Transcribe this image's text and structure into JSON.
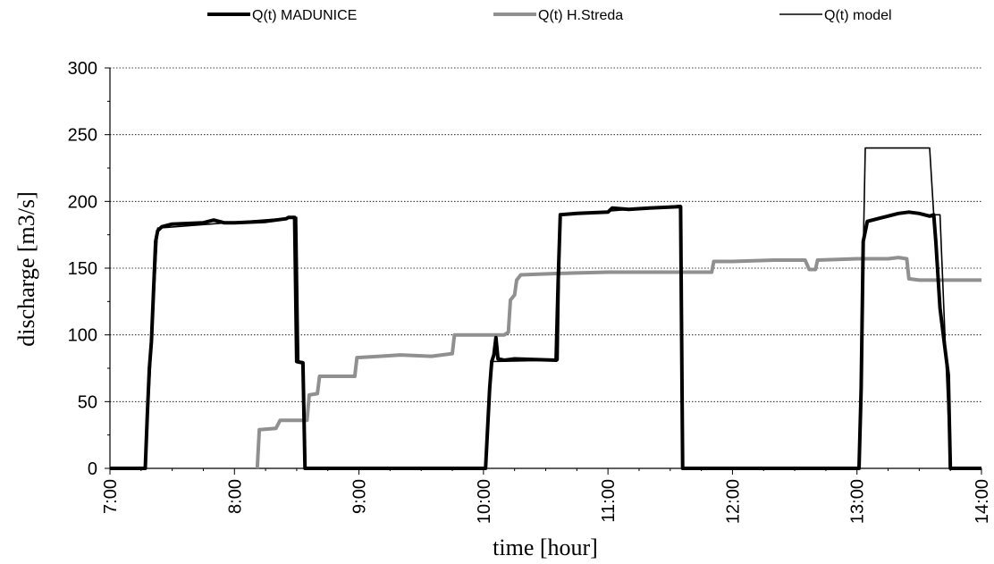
{
  "chart_data": {
    "type": "line",
    "title": "",
    "xlabel": "time [hour]",
    "ylabel": "discharge [m3/s]",
    "xlim": [
      "7:00",
      "14:00"
    ],
    "ylim": [
      0,
      300
    ],
    "x_ticks": [
      "7:00",
      "8:00",
      "9:00",
      "10:00",
      "11:00",
      "12:00",
      "13:00",
      "14:00"
    ],
    "y_ticks": [
      "0",
      "50",
      "100",
      "150",
      "200",
      "250",
      "300"
    ],
    "grid": "horizontal dotted",
    "legend_position": "top",
    "series": [
      {
        "name": "Q(t) MADUNICE",
        "color": "#000000",
        "style": "thick",
        "points": [
          [
            "7:00",
            0
          ],
          [
            "7:17",
            0
          ],
          [
            "7:18",
            40
          ],
          [
            "7:19",
            75
          ],
          [
            "7:20",
            95
          ],
          [
            "7:22",
            170
          ],
          [
            "7:23",
            178
          ],
          [
            "7:25",
            181
          ],
          [
            "7:30",
            183
          ],
          [
            "7:45",
            184
          ],
          [
            "7:50",
            186
          ],
          [
            "7:55",
            184
          ],
          [
            "8:00",
            184
          ],
          [
            "8:15",
            185
          ],
          [
            "8:25",
            187
          ],
          [
            "8:26",
            188
          ],
          [
            "8:29",
            188
          ],
          [
            "8:30",
            80
          ],
          [
            "8:33",
            79
          ],
          [
            "8:34",
            0
          ],
          [
            "10:00",
            0
          ],
          [
            "10:01",
            0
          ],
          [
            "10:03",
            60
          ],
          [
            "10:04",
            80
          ],
          [
            "10:05",
            85
          ],
          [
            "10:06",
            98
          ],
          [
            "10:07",
            82
          ],
          [
            "10:10",
            81
          ],
          [
            "10:15",
            82
          ],
          [
            "10:35",
            81
          ],
          [
            "10:36",
            140
          ],
          [
            "10:37",
            190
          ],
          [
            "10:45",
            191
          ],
          [
            "11:00",
            192
          ],
          [
            "11:02",
            195
          ],
          [
            "11:10",
            194
          ],
          [
            "11:20",
            195
          ],
          [
            "11:34",
            196
          ],
          [
            "11:35",
            196
          ],
          [
            "11:36",
            0
          ],
          [
            "13:00",
            0
          ],
          [
            "13:01",
            0
          ],
          [
            "13:02",
            60
          ],
          [
            "13:03",
            170
          ],
          [
            "13:05",
            185
          ],
          [
            "13:10",
            187
          ],
          [
            "13:20",
            191
          ],
          [
            "13:25",
            192
          ],
          [
            "13:30",
            191
          ],
          [
            "13:35",
            189
          ],
          [
            "13:37",
            190
          ],
          [
            "13:38",
            170
          ],
          [
            "13:40",
            120
          ],
          [
            "13:42",
            95
          ],
          [
            "13:44",
            70
          ],
          [
            "13:45",
            0
          ],
          [
            "14:00",
            0
          ]
        ]
      },
      {
        "name": "Q(t) H.Streda",
        "color": "#909090",
        "style": "thick",
        "points": [
          [
            "8:11",
            0
          ],
          [
            "8:12",
            29
          ],
          [
            "8:20",
            30
          ],
          [
            "8:22",
            36
          ],
          [
            "8:35",
            36
          ],
          [
            "8:36",
            55
          ],
          [
            "8:40",
            56
          ],
          [
            "8:41",
            69
          ],
          [
            "8:58",
            69
          ],
          [
            "8:59",
            83
          ],
          [
            "9:10",
            84
          ],
          [
            "9:20",
            85
          ],
          [
            "9:35",
            84
          ],
          [
            "9:40",
            85
          ],
          [
            "9:45",
            86
          ],
          [
            "9:46",
            100
          ],
          [
            "10:10",
            100
          ],
          [
            "10:12",
            102
          ],
          [
            "10:13",
            126
          ],
          [
            "10:15",
            130
          ],
          [
            "10:16",
            141
          ],
          [
            "10:18",
            145
          ],
          [
            "10:35",
            146
          ],
          [
            "11:00",
            147
          ],
          [
            "11:50",
            147
          ],
          [
            "11:51",
            155
          ],
          [
            "12:00",
            155
          ],
          [
            "12:20",
            156
          ],
          [
            "12:35",
            156
          ],
          [
            "12:37",
            149
          ],
          [
            "12:40",
            149
          ],
          [
            "12:41",
            156
          ],
          [
            "13:00",
            157
          ],
          [
            "13:15",
            157
          ],
          [
            "13:20",
            158
          ],
          [
            "13:24",
            157
          ],
          [
            "13:25",
            142
          ],
          [
            "13:30",
            141
          ],
          [
            "14:00",
            141
          ]
        ]
      },
      {
        "name": "Q(t) model",
        "color": "#000000",
        "style": "thin",
        "points": [
          [
            "7:00",
            0
          ],
          [
            "7:17",
            0
          ],
          [
            "7:23",
            180
          ],
          [
            "8:30",
            188
          ],
          [
            "8:31",
            80
          ],
          [
            "8:33",
            80
          ],
          [
            "8:34",
            0
          ],
          [
            "10:00",
            0
          ],
          [
            "10:01",
            0
          ],
          [
            "10:04",
            80
          ],
          [
            "10:36",
            81
          ],
          [
            "10:37",
            190
          ],
          [
            "11:35",
            197
          ],
          [
            "11:36",
            0
          ],
          [
            "13:00",
            0
          ],
          [
            "13:01",
            0
          ],
          [
            "13:04",
            240
          ],
          [
            "13:35",
            240
          ],
          [
            "13:37",
            190
          ],
          [
            "13:40",
            190
          ],
          [
            "13:45",
            0
          ],
          [
            "14:00",
            0
          ]
        ]
      }
    ]
  }
}
